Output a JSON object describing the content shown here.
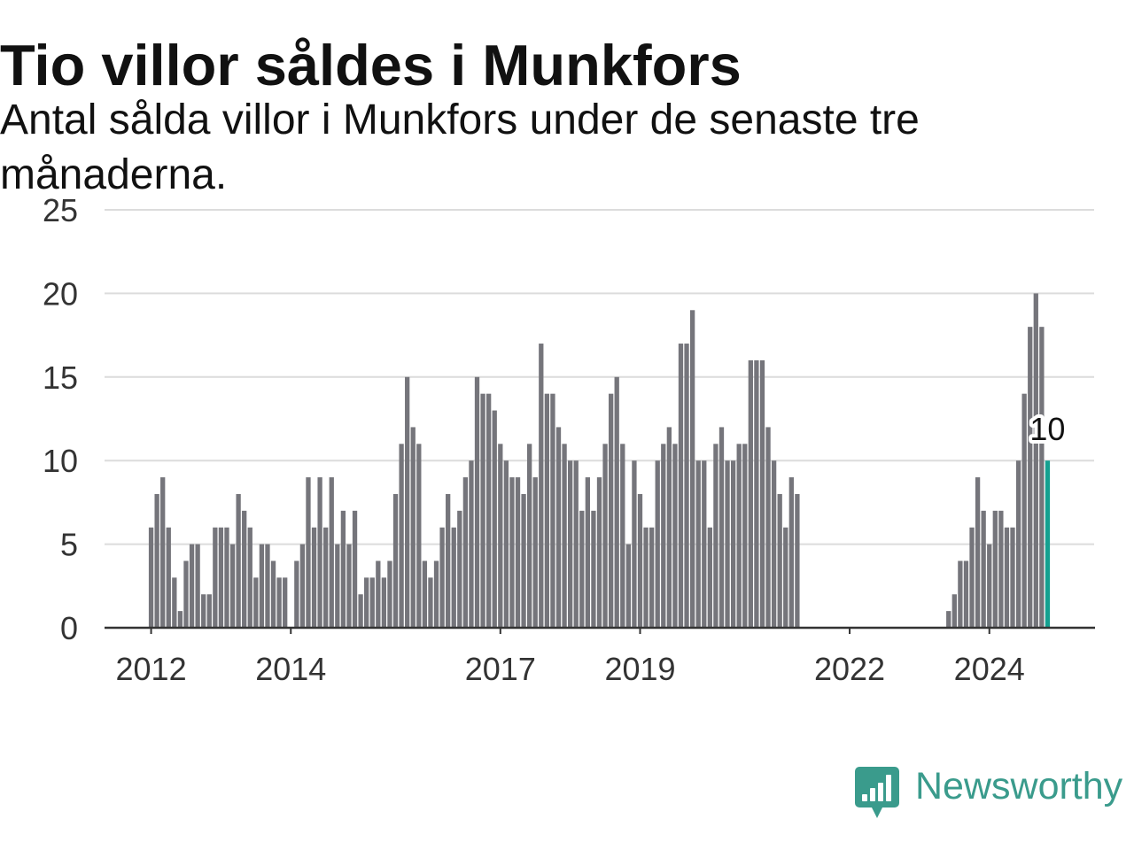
{
  "chart_data": {
    "type": "bar",
    "title": "Tio villor såldes i Munkfors",
    "subtitle": "Antal sålda villor i Munkfors under de senaste tre månaderna.",
    "x": [
      "2012-01",
      "2012-02",
      "2012-03",
      "2012-04",
      "2012-05",
      "2012-06",
      "2012-07",
      "2012-08",
      "2012-09",
      "2012-10",
      "2012-11",
      "2012-12",
      "2013-01",
      "2013-02",
      "2013-03",
      "2013-04",
      "2013-05",
      "2013-06",
      "2013-07",
      "2013-08",
      "2013-09",
      "2013-10",
      "2013-11",
      "2013-12",
      "2014-01",
      "2014-02",
      "2014-03",
      "2014-04",
      "2014-05",
      "2014-06",
      "2014-07",
      "2014-08",
      "2014-09",
      "2014-10",
      "2014-11",
      "2014-12",
      "2015-01",
      "2015-02",
      "2015-03",
      "2015-04",
      "2015-05",
      "2015-06",
      "2015-07",
      "2015-08",
      "2015-09",
      "2015-10",
      "2015-11",
      "2015-12",
      "2016-01",
      "2016-02",
      "2016-03",
      "2016-04",
      "2016-05",
      "2016-06",
      "2016-07",
      "2016-08",
      "2016-09",
      "2016-10",
      "2016-11",
      "2016-12",
      "2017-01",
      "2017-02",
      "2017-03",
      "2017-04",
      "2017-05",
      "2017-06",
      "2017-07",
      "2017-08",
      "2017-09",
      "2017-10",
      "2017-11",
      "2017-12",
      "2018-01",
      "2018-02",
      "2018-03",
      "2018-04",
      "2018-05",
      "2018-06",
      "2018-07",
      "2018-08",
      "2018-09",
      "2018-10",
      "2018-11",
      "2018-12",
      "2019-01",
      "2019-02",
      "2019-03",
      "2019-04",
      "2019-05",
      "2019-06",
      "2019-07",
      "2019-08",
      "2019-09",
      "2019-10",
      "2019-11",
      "2019-12",
      "2020-01",
      "2020-02",
      "2020-03",
      "2020-04",
      "2020-05",
      "2020-06",
      "2020-07",
      "2020-08",
      "2020-09",
      "2020-10",
      "2020-11",
      "2020-12",
      "2021-01",
      "2021-02",
      "2021-03",
      "2021-04",
      "2023-06",
      "2023-07",
      "2023-08",
      "2023-09",
      "2023-10",
      "2023-11",
      "2023-12",
      "2024-01",
      "2024-02",
      "2024-03",
      "2024-04",
      "2024-05",
      "2024-06",
      "2024-07",
      "2024-08",
      "2024-09",
      "2024-10",
      "2024-11"
    ],
    "values": [
      6,
      8,
      9,
      6,
      3,
      1,
      4,
      5,
      5,
      2,
      2,
      6,
      6,
      6,
      5,
      8,
      7,
      6,
      3,
      5,
      5,
      4,
      3,
      3,
      0,
      4,
      5,
      9,
      6,
      9,
      6,
      9,
      5,
      7,
      5,
      7,
      2,
      3,
      3,
      4,
      3,
      4,
      8,
      11,
      15,
      12,
      11,
      4,
      3,
      4,
      6,
      8,
      6,
      7,
      9,
      10,
      15,
      14,
      14,
      13,
      11,
      10,
      9,
      9,
      8,
      11,
      9,
      17,
      14,
      14,
      12,
      11,
      10,
      10,
      7,
      9,
      7,
      9,
      11,
      14,
      15,
      11,
      5,
      10,
      8,
      6,
      6,
      10,
      11,
      12,
      11,
      17,
      17,
      19,
      10,
      10,
      6,
      11,
      12,
      10,
      10,
      11,
      11,
      16,
      16,
      16,
      12,
      10,
      8,
      6,
      9,
      8,
      1,
      2,
      4,
      4,
      6,
      9,
      7,
      5,
      7,
      7,
      6,
      6,
      10,
      14,
      18,
      20,
      18,
      10
    ],
    "highlight": {
      "x": "2024-11",
      "value": 10,
      "label": "10"
    },
    "xlim": [
      "2011-05",
      "2025-07"
    ],
    "ylim": [
      0,
      25
    ],
    "yticks": [
      0,
      5,
      10,
      15,
      20,
      25
    ],
    "xticks": [
      {
        "x": "2012-01",
        "label": "2012"
      },
      {
        "x": "2014-01",
        "label": "2014"
      },
      {
        "x": "2017-01",
        "label": "2017"
      },
      {
        "x": "2019-01",
        "label": "2019"
      },
      {
        "x": "2022-01",
        "label": "2022"
      },
      {
        "x": "2024-01",
        "label": "2024"
      }
    ],
    "grid": true
  },
  "colors": {
    "bar": "#75757b",
    "highlight": "#14a090",
    "grid": "#dcdcdc",
    "axis": "#333333",
    "text": "#111111",
    "brand": "#3a9b8c"
  },
  "brand": {
    "name": "Newsworthy",
    "logo_icon": "newsworthy-logo-icon"
  }
}
